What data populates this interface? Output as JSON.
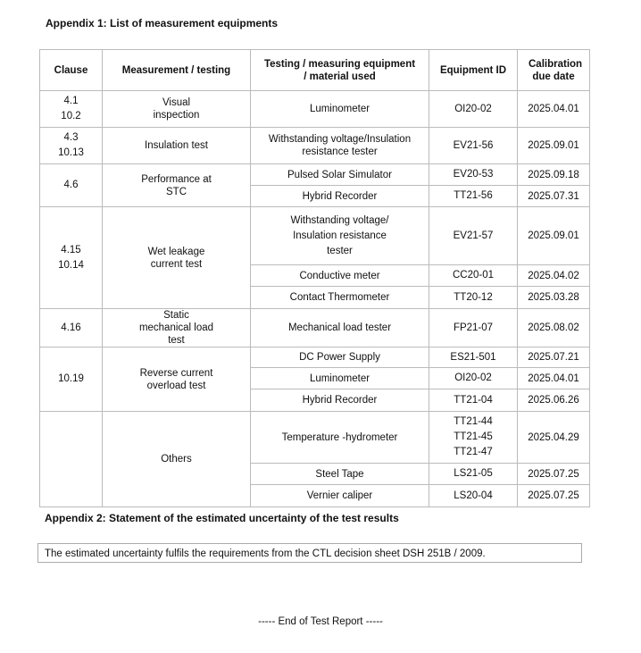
{
  "appendix1_title": "Appendix 1: List of measurement equipments",
  "table": {
    "headers": [
      "Clause",
      "Measurement / testing",
      "Testing / measuring equipment / material  used",
      "Equipment ID",
      "Calibration due date"
    ],
    "groups": [
      {
        "clause": "4.1\n10.2",
        "measurement": "Visual inspection",
        "items": [
          {
            "equipment": "Luminometer",
            "id": "OI20-02",
            "date": "2025.04.01"
          }
        ]
      },
      {
        "clause": "4.3\n10.13",
        "measurement": "Insulation test",
        "items": [
          {
            "equipment": "Withstanding voltage/Insulation resistance tester",
            "id": "EV21-56",
            "date": "2025.09.01"
          }
        ]
      },
      {
        "clause": "4.6",
        "measurement": "Performance at STC",
        "items": [
          {
            "equipment": "Pulsed Solar Simulator",
            "id": "EV20-53",
            "date": "2025.09.18"
          },
          {
            "equipment": "Hybrid Recorder",
            "id": "TT21-56",
            "date": "2025.07.31"
          }
        ]
      },
      {
        "clause": "4.15\n10.14",
        "measurement": "Wet leakage current test",
        "items": [
          {
            "equipment": "Withstanding voltage/\nInsulation resistance\ntester",
            "id": "EV21-57",
            "date": "2025.09.01"
          },
          {
            "equipment": "Conductive meter",
            "id": "CC20-01",
            "date": "2025.04.02"
          },
          {
            "equipment": "Contact Thermometer",
            "id": "TT20-12",
            "date": "2025.03.28"
          }
        ]
      },
      {
        "clause": "4.16",
        "measurement": "Static mechanical  load test",
        "items": [
          {
            "equipment": "Mechanical load tester",
            "id": "FP21-07",
            "date": "2025.08.02"
          }
        ]
      },
      {
        "clause": "10.19",
        "measurement": "Reverse current overload test",
        "items": [
          {
            "equipment": "DC Power Supply",
            "id": "ES21-501",
            "date": "2025.07.21"
          },
          {
            "equipment": "Luminometer",
            "id": "OI20-02",
            "date": "2025.04.01"
          },
          {
            "equipment": "Hybrid Recorder",
            "id": "TT21-04",
            "date": "2025.06.26"
          }
        ]
      },
      {
        "clause": "",
        "measurement": "Others",
        "items": [
          {
            "equipment": "Temperature -hydrometer",
            "id": "TT21-44\nTT21-45\nTT21-47",
            "date": "2025.04.29"
          },
          {
            "equipment": "Steel Tape",
            "id": "LS21-05",
            "date": "2025.07.25"
          },
          {
            "equipment": "Vernier caliper",
            "id": "LS20-04",
            "date": "2025.07.25"
          }
        ]
      }
    ]
  },
  "appendix2_title": "Appendix 2: Statement of the estimated uncertainty of the test results",
  "uncertainty_statement": "The estimated uncertainty fulfils the requirements from the CTL decision sheet DSH 251B / 2009.",
  "end_text": "----- End of Test Report -----"
}
